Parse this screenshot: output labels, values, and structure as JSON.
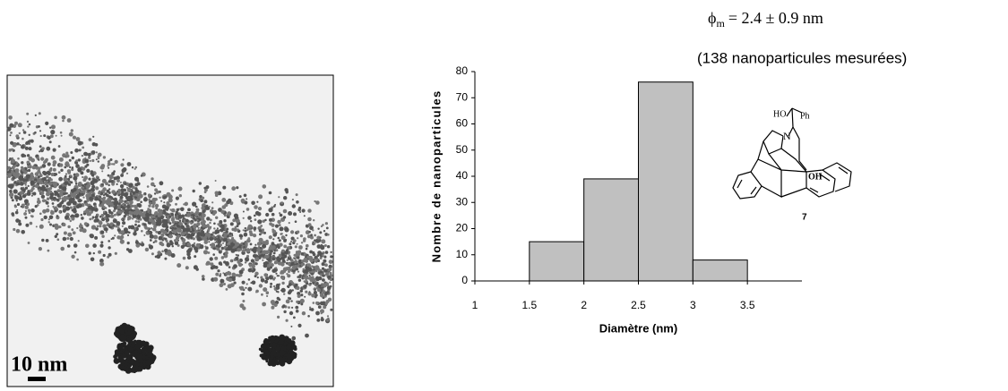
{
  "chart_data": {
    "type": "histogram",
    "bins": [
      1.5,
      2,
      2.5,
      3,
      3.5
    ],
    "values": [
      15,
      39,
      76,
      8
    ],
    "color": "#c0c0c0",
    "xlim": [
      1,
      4
    ],
    "xticks": [
      1,
      1.5,
      2,
      2.5,
      3,
      3.5
    ],
    "ylim": [
      0,
      80
    ],
    "yticks": [
      0,
      10,
      20,
      30,
      40,
      50,
      60,
      70,
      80
    ],
    "xlabel": "Diamètre (nm)",
    "ylabel": "Nombre de nanoparticules",
    "annotations": {
      "symbol": "ϕ",
      "subscript": "m",
      "stat": "= 2.4 ± 0.9 nm",
      "count": "(138 nanoparticules mesurées)"
    }
  },
  "image": {
    "scale_label": "10 nm"
  },
  "molecule": {
    "hydroxyl_top": "HO",
    "phenyl": "Ph",
    "nitrogen": "N",
    "hydroxyl": "OH",
    "number": "7"
  }
}
